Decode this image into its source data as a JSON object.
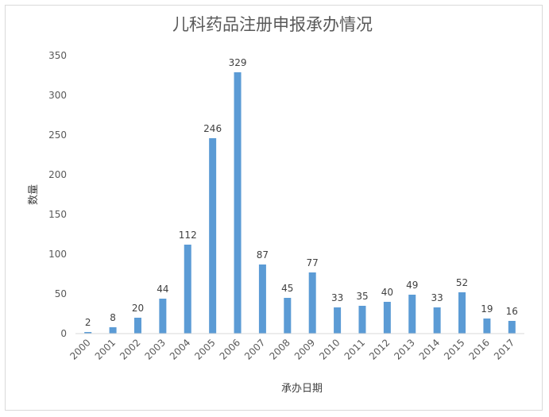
{
  "chart_data": {
    "type": "bar",
    "title": "儿科药品注册申报承办情况",
    "xlabel": "承办日期",
    "ylabel": "数量",
    "categories": [
      "2000",
      "2001",
      "2002",
      "2003",
      "2004",
      "2005",
      "2006",
      "2007",
      "2008",
      "2009",
      "2010",
      "2011",
      "2012",
      "2013",
      "2014",
      "2015",
      "2016",
      "2017"
    ],
    "values": [
      2,
      8,
      20,
      44,
      112,
      246,
      329,
      87,
      45,
      77,
      33,
      35,
      40,
      49,
      33,
      52,
      19,
      16
    ],
    "ylim": [
      0,
      350
    ],
    "yticks": [
      0,
      50,
      100,
      150,
      200,
      250,
      300,
      350
    ],
    "grid": false,
    "legend": "none",
    "bar_color": "#5b9bd5",
    "data_labels": true
  }
}
